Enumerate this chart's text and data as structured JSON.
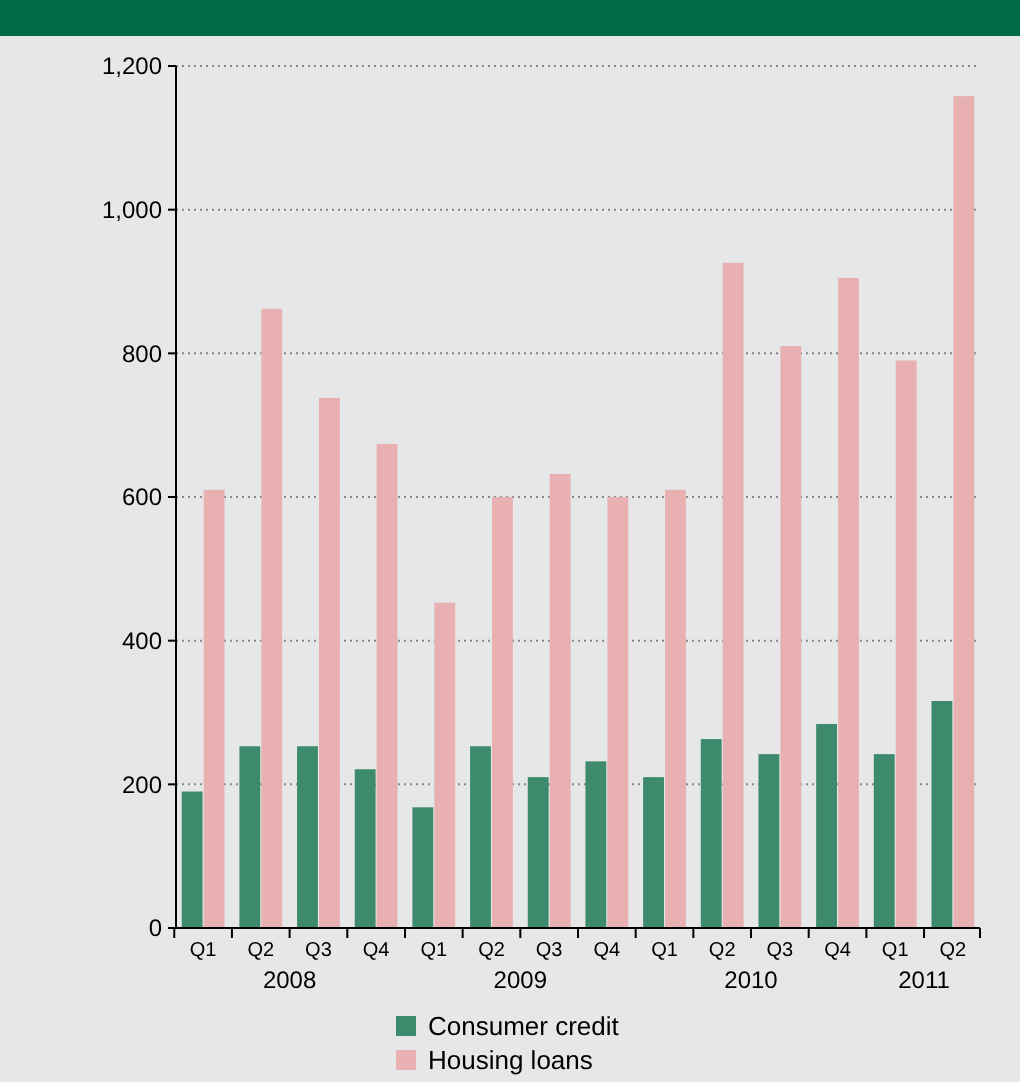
{
  "chart_data": {
    "type": "bar",
    "categories": [
      "Q1",
      "Q2",
      "Q3",
      "Q4",
      "Q1",
      "Q2",
      "Q3",
      "Q4",
      "Q1",
      "Q2",
      "Q3",
      "Q4",
      "Q1",
      "Q2"
    ],
    "series": [
      {
        "name": "Consumer credit",
        "color": "#3d8a6c",
        "values": [
          190,
          253,
          253,
          221,
          168,
          253,
          210,
          232,
          210,
          263,
          242,
          284,
          242,
          316
        ]
      },
      {
        "name": "Housing loans",
        "color": "#e8b0b0",
        "values": [
          610,
          862,
          738,
          674,
          453,
          600,
          632,
          600,
          610,
          926,
          810,
          905,
          790,
          1158
        ]
      }
    ],
    "annotations": [
      "2008",
      "2009",
      "2010",
      "2011"
    ],
    "ylim": [
      0,
      1200
    ],
    "yticks": [
      0,
      {
        "value": 200,
        "label": "200"
      },
      {
        "value": 400,
        "label": "400"
      },
      {
        "value": 600,
        "label": "600"
      },
      {
        "value": 800,
        "label": "800"
      },
      {
        "value": 1000,
        "label": "1,000"
      },
      {
        "value": 1200,
        "label": "1,200"
      }
    ],
    "grid": "y",
    "legend": "bottom"
  }
}
